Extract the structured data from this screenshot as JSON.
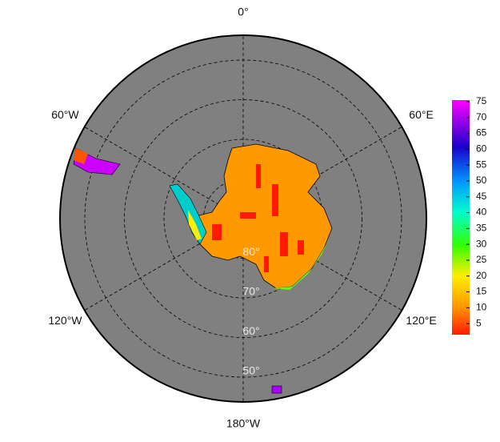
{
  "map": {
    "lon_labels": [
      {
        "value": 0,
        "label": "0°"
      },
      {
        "value": 60,
        "label": "60°E"
      },
      {
        "value": 120,
        "label": "120°E"
      },
      {
        "value": 180,
        "label": "180°W"
      },
      {
        "value": -120,
        "label": "120°W"
      },
      {
        "value": -60,
        "label": "60°W"
      }
    ],
    "lat_labels": [
      {
        "value": 80,
        "label": "80°"
      },
      {
        "value": 70,
        "label": "70°"
      },
      {
        "value": 60,
        "label": "60°"
      },
      {
        "value": 50,
        "label": "50°"
      }
    ],
    "colorbar": {
      "lim": [
        1.5,
        75.5
      ],
      "ticks": [
        5,
        10,
        15,
        20,
        25,
        30,
        35,
        40,
        45,
        50,
        55,
        60,
        65,
        70,
        75
      ]
    }
  }
}
